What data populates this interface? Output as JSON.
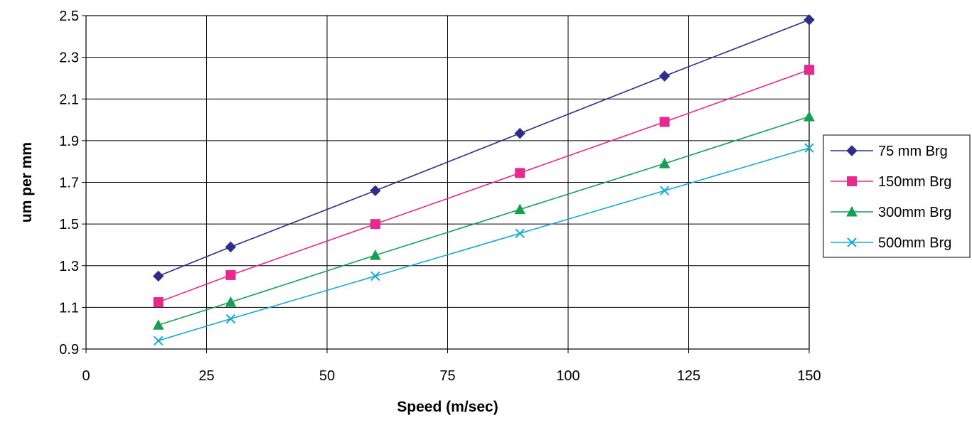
{
  "chart_data": {
    "type": "line",
    "title": "",
    "xlabel": "Speed (m/sec)",
    "ylabel": "um per mm",
    "xlim": [
      0,
      150
    ],
    "ylim": [
      0.9,
      2.5
    ],
    "xticks": [
      0,
      25,
      50,
      75,
      100,
      125,
      150
    ],
    "yticks": [
      0.9,
      1.1,
      1.3,
      1.5,
      1.7,
      1.9,
      2.1,
      2.3,
      2.5
    ],
    "xtick_labels": [
      "0",
      "25",
      "50",
      "75",
      "100",
      "125",
      "150"
    ],
    "ytick_labels": [
      "0.9",
      "1.1",
      "1.3",
      "1.5",
      "1.7",
      "1.9",
      "2.1",
      "2.3",
      "2.5"
    ],
    "grid": true,
    "legend_position": "right",
    "x": [
      15,
      30,
      60,
      90,
      120,
      150
    ],
    "series": [
      {
        "name": "75 mm Brg",
        "color": "#2e2e8a",
        "marker": "diamond",
        "values": [
          1.25,
          1.39,
          1.66,
          1.935,
          2.21,
          2.48
        ]
      },
      {
        "name": "150mm Brg",
        "color": "#e8288c",
        "marker": "square",
        "values": [
          1.125,
          1.255,
          1.5,
          1.745,
          1.99,
          2.24
        ]
      },
      {
        "name": "300mm Brg",
        "color": "#14a050",
        "marker": "triangle",
        "values": [
          1.015,
          1.125,
          1.35,
          1.57,
          1.79,
          2.015
        ]
      },
      {
        "name": "500mm Brg",
        "color": "#14a8d8",
        "marker": "x",
        "values": [
          0.94,
          1.045,
          1.25,
          1.455,
          1.66,
          1.865
        ]
      }
    ]
  }
}
